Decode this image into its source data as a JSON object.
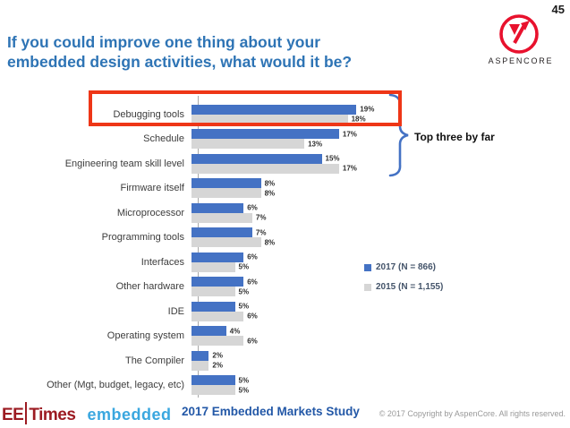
{
  "page": {
    "number": "45"
  },
  "header": {
    "title_line1": "If you could improve one thing about your",
    "title_line2": "embedded design activities, what would it be?"
  },
  "logo": {
    "name": "ASPENCORE",
    "brand_color": "#e8112d"
  },
  "chart_data": {
    "type": "bar",
    "orientation": "horizontal",
    "categories": [
      "Debugging tools",
      "Schedule",
      "Engineering team skill level",
      "Firmware itself",
      "Microprocessor",
      "Programming tools",
      "Interfaces",
      "Other hardware",
      "IDE",
      "Operating system",
      "The Compiler",
      "Other (Mgt, budget, legacy, etc)"
    ],
    "series": [
      {
        "name": "2017 (N = 866)",
        "color": "#4472c4",
        "values": [
          19,
          17,
          15,
          8,
          6,
          7,
          6,
          6,
          5,
          4,
          2,
          5
        ]
      },
      {
        "name": "2015 (N = 1,155)",
        "color": "#d6d6d6",
        "values": [
          18,
          13,
          17,
          8,
          7,
          8,
          5,
          5,
          6,
          6,
          2,
          5
        ]
      }
    ],
    "value_suffix": "%",
    "xlim": [
      0,
      20
    ],
    "grid": false,
    "legend_position": "right",
    "annotation": "Top three by far",
    "highlighted_category": "Debugging tools",
    "highlight_color": "#ee3617",
    "brace_color": "#4472c4"
  },
  "footer": {
    "eetimes_ee": "EE",
    "eetimes_times": "Times",
    "embedded": "embedded",
    "study_title": "2017 Embedded Markets Study",
    "copyright": "© 2017 Copyright by AspenCore. All rights reserved."
  }
}
